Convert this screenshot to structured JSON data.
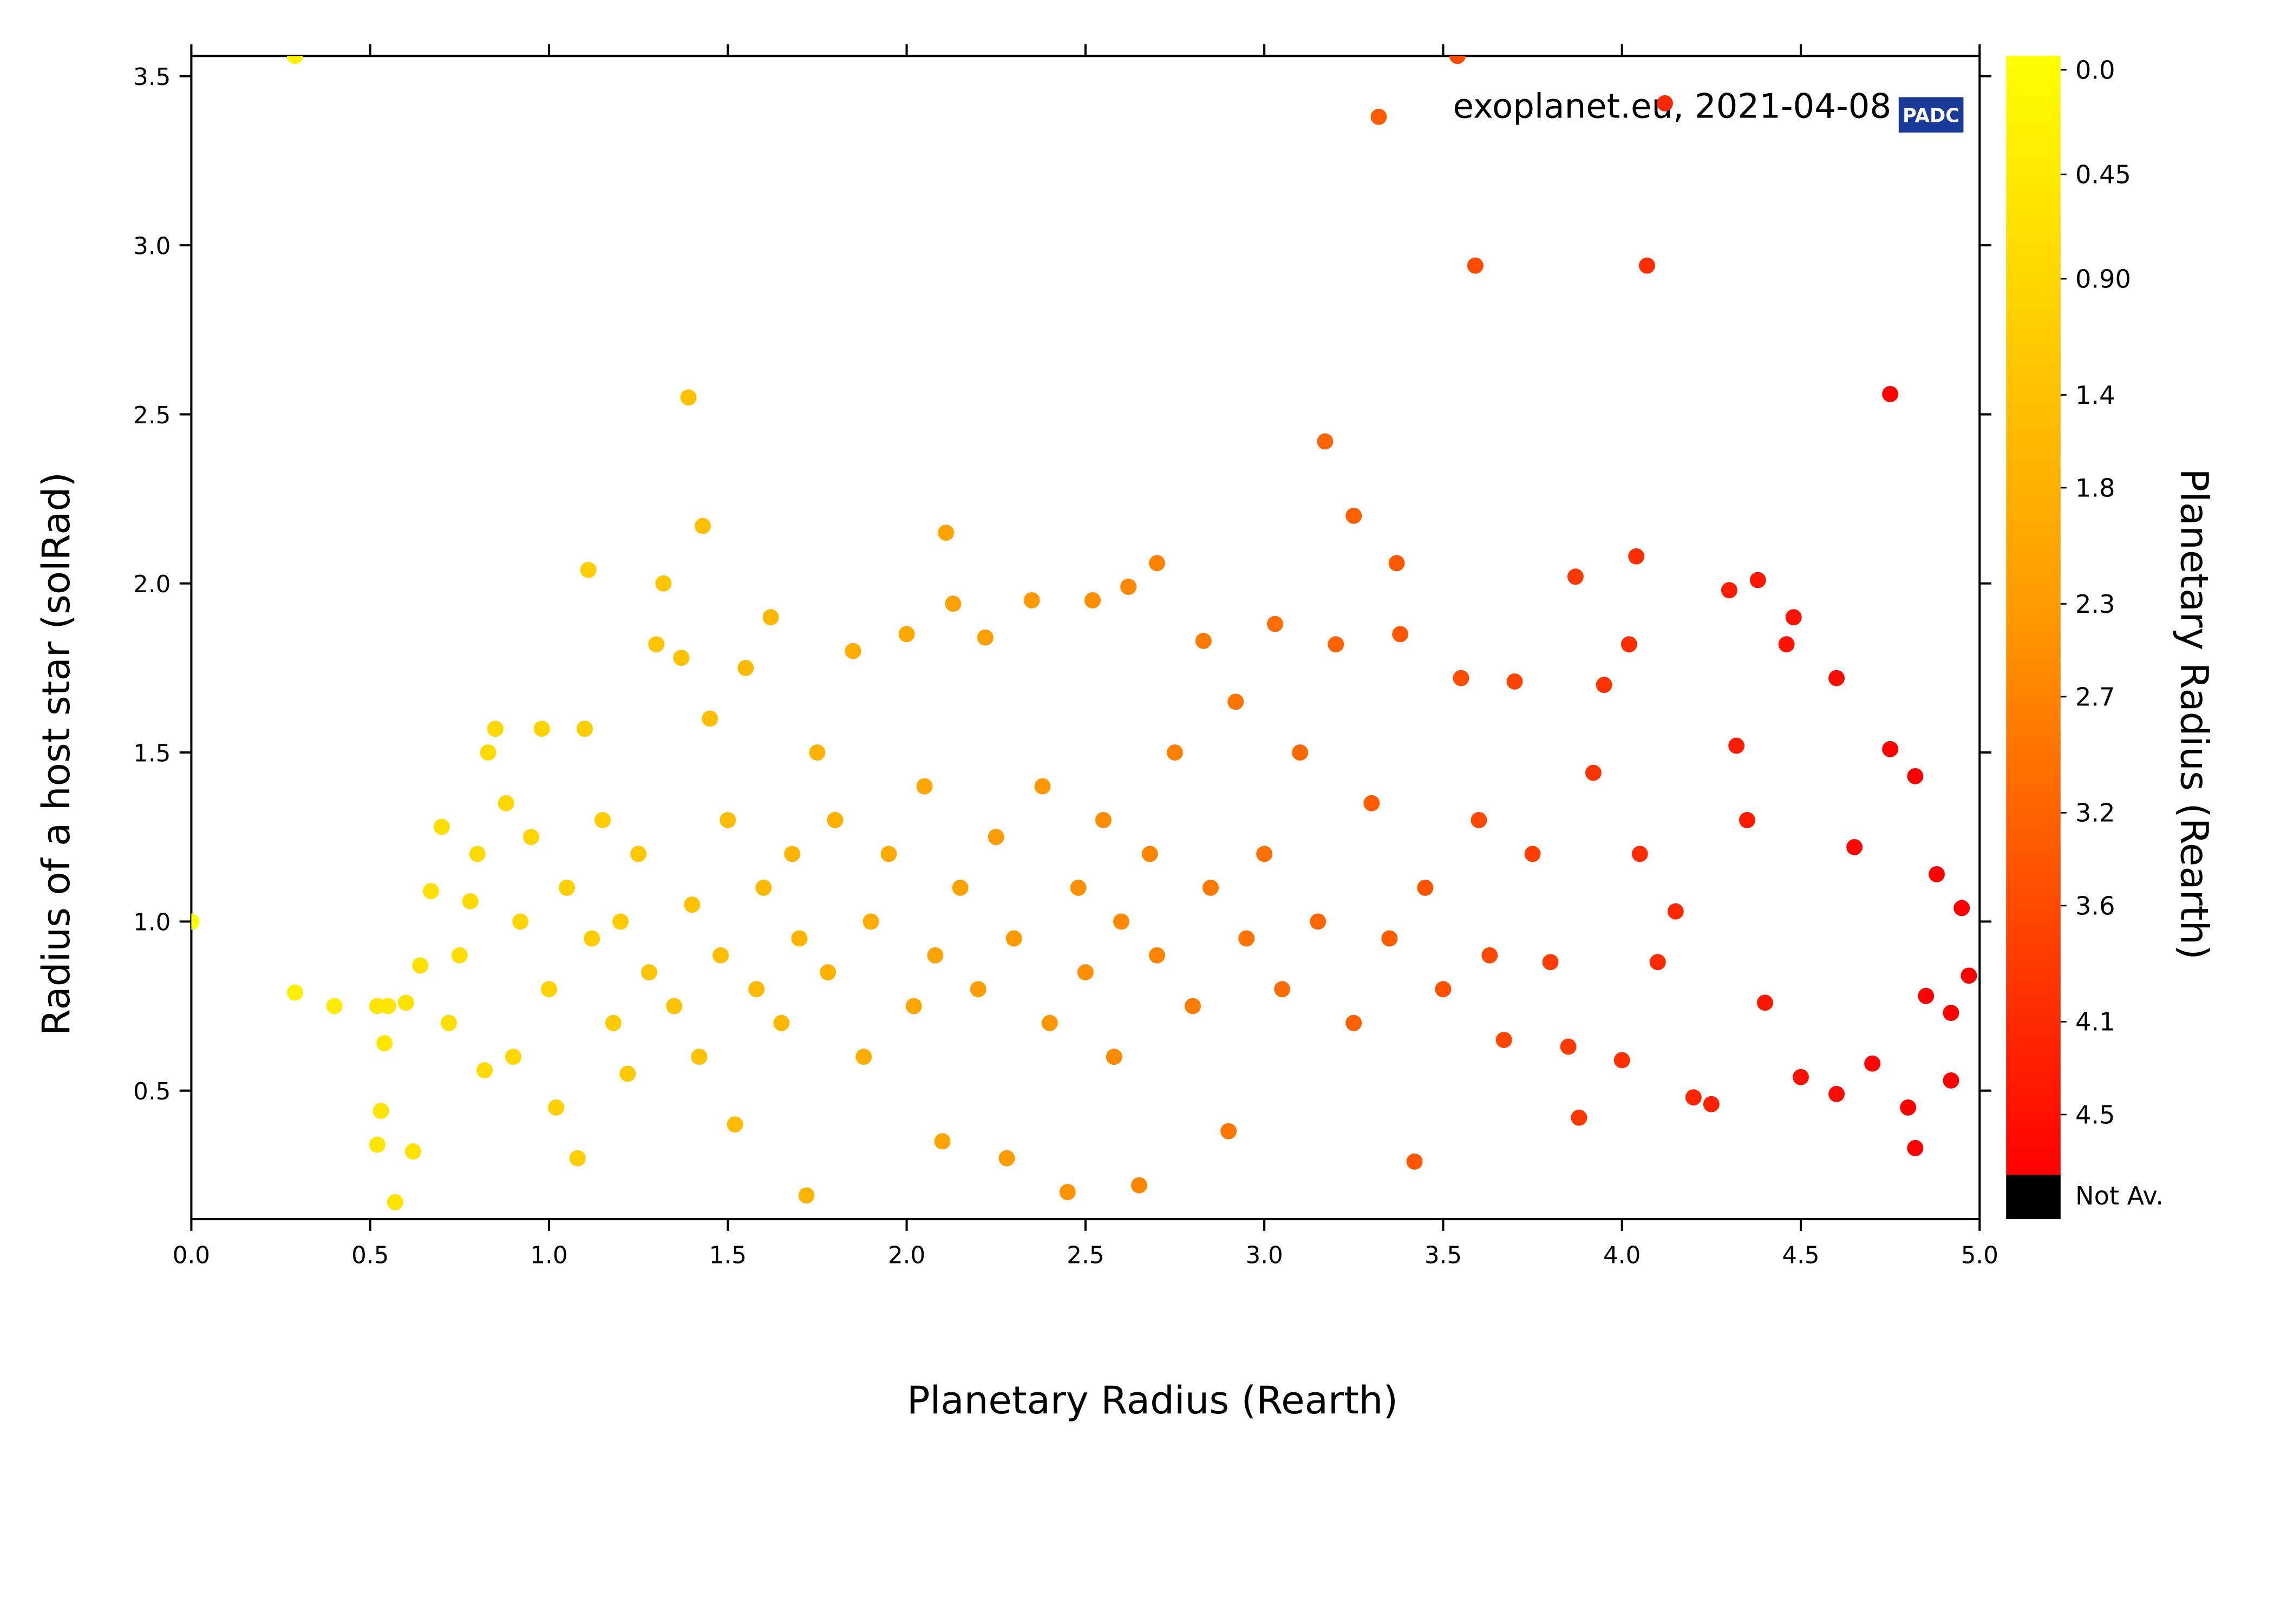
{
  "chart_data": {
    "type": "scatter",
    "annotation": "exoplanet.eu, 2021-04-08",
    "logo": "PADC",
    "x_label": "Planetary Radius (Rearth)",
    "y_label": "Radius of a host star (solRad)",
    "xlim": [
      0,
      5
    ],
    "ylim": [
      0.12,
      3.56
    ],
    "xticks": [
      {
        "value": 0,
        "label": "0.0"
      },
      0.5,
      {
        "value": 1,
        "label": "1.0"
      },
      1.5,
      {
        "value": 2,
        "label": "2.0"
      },
      2.5,
      {
        "value": 3,
        "label": "3.0"
      },
      3.5,
      {
        "value": 4,
        "label": "4.0"
      },
      4.5,
      {
        "value": 5,
        "label": "5.0"
      }
    ],
    "yticks": [
      0.5,
      {
        "value": 1,
        "label": "1.0"
      },
      1.5,
      {
        "value": 2,
        "label": "2.0"
      },
      2.5,
      {
        "value": 3,
        "label": "3.0"
      },
      3.5
    ],
    "colorbar": {
      "label": "Planetary Radius (Rearth)",
      "lim": [
        -0.06,
        4.76
      ],
      "colors": [
        "#ffff00",
        "#ff9900",
        "#ff0000"
      ],
      "ticks": [
        {
          "value": 0,
          "label": "0.0"
        },
        0.45,
        {
          "value": 0.9,
          "label": "0.90"
        },
        1.4,
        1.8,
        2.3,
        2.7,
        3.2,
        3.6,
        4.1,
        4.5
      ],
      "na_label": "Not Av.",
      "na_color": "#000000"
    },
    "x": [
      0.29,
      3.32,
      3.54,
      4.12,
      3.59,
      4.07,
      4.75,
      1.39,
      3.17,
      3.25,
      1.43,
      2.11,
      1.11,
      2.7,
      3.37,
      4.04,
      3.87,
      4.38,
      0.0,
      0.29,
      0.4,
      0.57,
      0.82,
      0.52,
      0.55,
      0.6,
      0.53,
      0.52,
      0.54,
      0.62,
      0.64,
      0.67,
      0.7,
      0.72,
      0.75,
      0.78,
      0.8,
      0.83,
      0.85,
      0.88,
      0.9,
      0.92,
      0.95,
      0.98,
      1.0,
      1.02,
      1.05,
      1.08,
      1.1,
      1.12,
      1.15,
      1.18,
      1.2,
      1.22,
      1.25,
      1.28,
      1.3,
      1.32,
      1.35,
      1.37,
      1.4,
      1.42,
      1.45,
      1.48,
      1.5,
      1.52,
      1.55,
      1.58,
      1.6,
      1.62,
      1.65,
      1.68,
      1.7,
      1.72,
      1.75,
      1.78,
      1.8,
      1.85,
      1.88,
      1.9,
      1.95,
      2.0,
      2.02,
      2.05,
      2.08,
      2.1,
      2.13,
      2.15,
      2.2,
      2.22,
      2.25,
      2.28,
      2.3,
      2.35,
      2.38,
      2.4,
      2.45,
      2.48,
      2.5,
      2.52,
      2.55,
      2.58,
      2.6,
      2.62,
      2.65,
      2.68,
      2.7,
      2.75,
      2.8,
      2.83,
      2.85,
      2.9,
      2.92,
      2.95,
      3.0,
      3.03,
      3.05,
      3.1,
      3.15,
      3.2,
      3.25,
      3.3,
      3.35,
      3.38,
      3.42,
      3.45,
      3.5,
      3.55,
      3.6,
      3.63,
      3.67,
      3.7,
      3.75,
      3.8,
      3.85,
      3.88,
      3.92,
      3.95,
      4.0,
      4.02,
      4.05,
      4.1,
      4.15,
      4.2,
      4.25,
      4.3,
      4.32,
      4.35,
      4.4,
      4.46,
      4.48,
      4.5,
      4.6,
      4.6,
      4.65,
      4.7,
      4.75,
      4.8,
      4.82,
      4.85,
      4.88,
      4.92,
      4.95,
      4.97,
      4.82,
      4.92
    ],
    "y": [
      3.56,
      3.38,
      3.56,
      3.42,
      2.94,
      2.94,
      2.56,
      2.55,
      2.42,
      2.2,
      2.17,
      2.15,
      2.04,
      2.06,
      2.06,
      2.08,
      2.02,
      2.01,
      1.0,
      0.79,
      0.75,
      0.17,
      0.56,
      0.75,
      0.75,
      0.76,
      0.44,
      0.34,
      0.64,
      0.32,
      0.87,
      1.09,
      1.28,
      0.7,
      0.9,
      1.06,
      1.2,
      1.5,
      1.57,
      1.35,
      0.6,
      1.0,
      1.25,
      1.57,
      0.8,
      0.45,
      1.1,
      0.3,
      1.57,
      0.95,
      1.3,
      0.7,
      1.0,
      0.55,
      1.2,
      0.85,
      1.82,
      2.0,
      0.75,
      1.78,
      1.05,
      0.6,
      1.6,
      0.9,
      1.3,
      0.4,
      1.75,
      0.8,
      1.1,
      1.9,
      0.7,
      1.2,
      0.95,
      0.19,
      1.5,
      0.85,
      1.3,
      1.8,
      0.6,
      1.0,
      1.2,
      1.85,
      0.75,
      1.4,
      0.9,
      0.35,
      1.94,
      1.1,
      0.8,
      1.84,
      1.25,
      0.3,
      0.95,
      1.95,
      1.4,
      0.7,
      0.2,
      1.1,
      0.85,
      1.95,
      1.3,
      0.6,
      1.0,
      1.99,
      0.22,
      1.2,
      0.9,
      1.5,
      0.75,
      1.83,
      1.1,
      0.38,
      1.65,
      0.95,
      1.2,
      1.88,
      0.8,
      1.5,
      1.0,
      1.82,
      0.7,
      1.35,
      0.95,
      1.85,
      0.29,
      1.1,
      0.8,
      1.72,
      1.3,
      0.9,
      0.65,
      1.71,
      1.2,
      0.88,
      0.63,
      0.42,
      1.44,
      1.7,
      0.59,
      1.82,
      1.2,
      0.88,
      1.03,
      0.48,
      0.46,
      1.98,
      1.52,
      1.3,
      0.76,
      1.82,
      1.9,
      0.54,
      1.72,
      0.49,
      1.22,
      0.58,
      1.51,
      0.45,
      1.43,
      0.78,
      1.14,
      0.73,
      1.04,
      0.84,
      0.33,
      0.53
    ]
  }
}
